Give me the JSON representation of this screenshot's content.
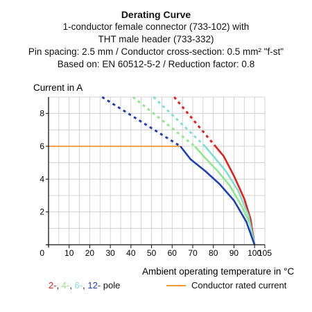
{
  "header": {
    "title": "Derating Curve",
    "line1": "1-conductor female connector (733-102) with",
    "line2": "THT male header (733-332)",
    "line3": "Pin spacing: 2.5 mm / Conductor cross-section: 0.5 mm² \"f-st\"",
    "line4": "Based on: EN 60512-5-2 / Reduction factor: 0.8"
  },
  "legend": {
    "poles": [
      {
        "label": "2-",
        "color": "#e3201b"
      },
      {
        "label": "4-",
        "color": "#8fe88a"
      },
      {
        "label": "6-",
        "color": "#7fe0cf"
      },
      {
        "label": "12-",
        "color": "#1e3fb4"
      }
    ],
    "poles_suffix": " pole",
    "rated_label": "Conductor rated current",
    "rated_color": "#f39433"
  },
  "chart_data": {
    "type": "line",
    "ylabel": "Current in A",
    "xlabel": "Ambient operating temperature in °C",
    "xlim": [
      0,
      105
    ],
    "ylim": [
      0,
      9
    ],
    "x_ticks": [
      0,
      10,
      20,
      30,
      40,
      50,
      60,
      70,
      80,
      90,
      100,
      105
    ],
    "y_ticks": [
      0,
      2,
      4,
      6,
      8
    ],
    "grid": true,
    "rated_current": {
      "name": "Conductor rated current",
      "color": "#f39433",
      "points": [
        [
          0,
          6
        ],
        [
          64,
          6
        ]
      ]
    },
    "series": [
      {
        "name": "2-",
        "color": "#e3201b",
        "dashed": [
          [
            61,
            9
          ],
          [
            81,
            6
          ]
        ],
        "solid": [
          [
            81,
            6
          ],
          [
            85,
            5.4
          ],
          [
            90,
            4.2
          ],
          [
            95,
            2.8
          ],
          [
            98,
            1.6
          ],
          [
            100,
            0
          ]
        ]
      },
      {
        "name": "4-",
        "color": "#8fe88a",
        "dashed": [
          [
            41,
            9
          ],
          [
            71,
            6
          ]
        ],
        "solid": [
          [
            71,
            6
          ],
          [
            76,
            5.3
          ],
          [
            82,
            4.5
          ],
          [
            88,
            3.6
          ],
          [
            94,
            2.3
          ],
          [
            98,
            1.2
          ],
          [
            100,
            0
          ]
        ]
      },
      {
        "name": "6-",
        "color": "#7fe0cf",
        "dashed": [
          [
            51,
            9
          ],
          [
            76,
            6
          ]
        ],
        "solid": [
          [
            76,
            6
          ],
          [
            80,
            5.4
          ],
          [
            86,
            4.5
          ],
          [
            92,
            3.3
          ],
          [
            97,
            1.8
          ],
          [
            100,
            0
          ]
        ]
      },
      {
        "name": "12-",
        "color": "#1e3fb4",
        "dashed": [
          [
            26,
            9
          ],
          [
            64,
            6
          ]
        ],
        "solid": [
          [
            64,
            6
          ],
          [
            69,
            5.2
          ],
          [
            76,
            4.5
          ],
          [
            83,
            3.7
          ],
          [
            90,
            2.7
          ],
          [
            96,
            1.4
          ],
          [
            100,
            0
          ]
        ]
      }
    ]
  }
}
